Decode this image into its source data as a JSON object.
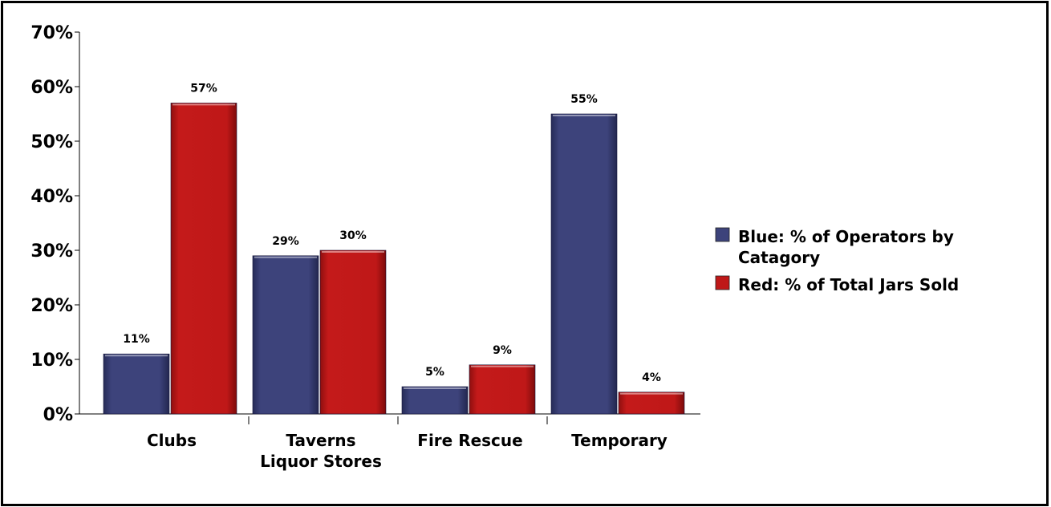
{
  "chart_data": {
    "type": "bar",
    "title": "",
    "xlabel": "",
    "ylabel": "",
    "ylim": [
      0,
      70
    ],
    "y_ticks": [
      "0%",
      "10%",
      "20%",
      "30%",
      "40%",
      "50%",
      "60%",
      "70%"
    ],
    "categories": [
      [
        "Clubs"
      ],
      [
        "Taverns",
        "Liquor Stores"
      ],
      [
        "Fire Rescue"
      ],
      [
        "Temporary"
      ]
    ],
    "series": [
      {
        "name": "Blue:  % of Operators by Catagory",
        "color": "#3d437b",
        "values": [
          11,
          29,
          5,
          55
        ],
        "labels": [
          "11%",
          "29%",
          "5%",
          "55%"
        ]
      },
      {
        "name": "Red:  % of Total Jars Sold",
        "color": "#bf1818",
        "values": [
          57,
          30,
          9,
          4
        ],
        "labels": [
          "57%",
          "30%",
          "9%",
          "4%"
        ]
      }
    ],
    "legend": {
      "position": "right",
      "entries": [
        {
          "color": "#3d437b",
          "lines": [
            "Blue:  % of Operators by",
            "Catagory"
          ]
        },
        {
          "color": "#bf1818",
          "lines": [
            "Red:  % of Total Jars Sold"
          ]
        }
      ]
    },
    "grid": false
  }
}
